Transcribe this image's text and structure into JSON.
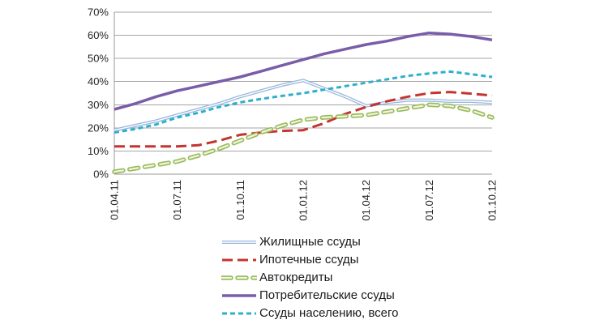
{
  "chart_data": {
    "type": "line",
    "title": "",
    "xlabel": "",
    "ylabel": "",
    "ylim": [
      0,
      70
    ],
    "y_tick_step": 10,
    "y_tick_labels": [
      "0%",
      "10%",
      "20%",
      "30%",
      "40%",
      "50%",
      "60%",
      "70%"
    ],
    "grid": "horizontal",
    "legend_position": "bottom",
    "x_label_every": 3,
    "x_label_rotation": -90,
    "categories": [
      "01.04.11",
      "01.05.11",
      "01.06.11",
      "01.07.11",
      "01.08.11",
      "01.09.11",
      "01.10.11",
      "01.11.11",
      "01.12.11",
      "01.01.12",
      "01.02.12",
      "01.03.12",
      "01.04.12",
      "01.05.12",
      "01.06.12",
      "01.07.12",
      "01.08.12",
      "01.09.12",
      "01.10.12"
    ],
    "x_tick_labels_visible": [
      "01.04.11",
      "01.07.11",
      "01.10.11",
      "01.01.12",
      "01.04.12",
      "01.07.12",
      "01.10.12"
    ],
    "series": [
      {
        "name": "Жилищные ссуды",
        "color": "#98b8dc",
        "dash": null,
        "width": 4,
        "core_color": "#ffffff",
        "core_width": 1.4,
        "linecap": "butt",
        "values": [
          19,
          21,
          23,
          25.5,
          28,
          30.5,
          33.5,
          36,
          38.5,
          40.5,
          37,
          33.5,
          29.5,
          31,
          32,
          32,
          31.5,
          31.5,
          31
        ]
      },
      {
        "name": "Ипотечные ссуды",
        "color": "#c43431",
        "dash": "13 6",
        "width": 3,
        "core_color": null,
        "core_width": 0,
        "linecap": "butt",
        "values": [
          12,
          12,
          12,
          12,
          12.5,
          14.5,
          17,
          18,
          18.7,
          19,
          22,
          26,
          29,
          31.5,
          33.5,
          35,
          35.5,
          34.8,
          34
        ]
      },
      {
        "name": "Автокредиты",
        "color": "#9bbb59",
        "dash": "11 8",
        "width": 5.5,
        "core_color": "#eff5e2",
        "core_width": 2.2,
        "linecap": "round",
        "values": [
          1,
          2.5,
          4,
          5.5,
          8,
          11,
          14.5,
          18,
          21,
          23.5,
          24.5,
          25,
          25.5,
          27,
          28.5,
          30,
          29.5,
          27.5,
          24.5
        ]
      },
      {
        "name": "Потребительские ссуды",
        "color": "#7a5da8",
        "dash": null,
        "width": 3.5,
        "core_color": null,
        "core_width": 0,
        "linecap": "butt",
        "values": [
          28,
          30.5,
          33.5,
          36,
          38,
          40,
          42,
          44.5,
          47,
          49.5,
          52,
          54,
          56,
          57.5,
          59.5,
          61,
          60.5,
          59.5,
          58
        ]
      },
      {
        "name": "Ссуды населению, всего",
        "color": "#2eafcc",
        "dash": "6 4",
        "width": 3,
        "core_color": null,
        "core_width": 0,
        "linecap": "butt",
        "values": [
          18,
          19.5,
          21.5,
          24.5,
          26.5,
          29,
          31,
          32.5,
          33.8,
          35,
          36.5,
          38,
          39.5,
          41,
          42.5,
          43.5,
          44.3,
          43.2,
          42
        ]
      }
    ],
    "axis_color": "#9a9a9a",
    "gridline_color": "#a6a6a6",
    "tick_label_color": "#262626"
  }
}
